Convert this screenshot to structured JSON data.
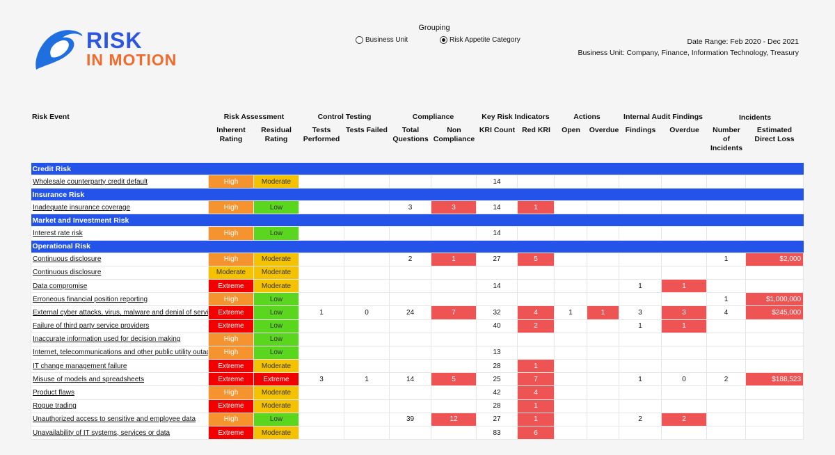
{
  "logo": {
    "line1": "RISK",
    "line2": "IN MOTION"
  },
  "grouping": {
    "title": "Grouping",
    "options": [
      {
        "label": "Business Unit",
        "selected": false
      },
      {
        "label": "Risk Appetite Category",
        "selected": true
      }
    ]
  },
  "meta": {
    "date_range": "Date Range: Feb 2020 - Dec 2021",
    "business_unit": "Business Unit: Company, Finance, Information Technology, Treasury"
  },
  "headers": {
    "risk_event": "Risk Event",
    "groups": [
      "Risk Assessment",
      "Control Testing",
      "Compliance",
      "Key Risk Indicators",
      "Actions",
      "Internal Audit Findings",
      "Incidents"
    ],
    "columns": [
      "Inherent Rating",
      "Residual Rating",
      "Tests Performed",
      "Tests Failed",
      "Total Questions",
      "Non Compliance",
      "KRI Count",
      "Red KRI",
      "Open",
      "Overdue",
      "Findings",
      "Overdue",
      "Number of Incidents",
      "Estimated Direct Loss"
    ]
  },
  "categories": [
    {
      "name": "Credit Risk",
      "rows": [
        {
          "event": "Wholesale counterparty credit default",
          "inherent": "High",
          "residual": "Moderate",
          "kri_count": "14"
        }
      ]
    },
    {
      "name": "Insurance Risk",
      "rows": [
        {
          "event": "Inadequate insurance coverage",
          "inherent": "High",
          "residual": "Low",
          "total_questions": "3",
          "non_compliance": "3",
          "kri_count": "14",
          "red_kri": "1"
        }
      ]
    },
    {
      "name": "Market and Investment Risk",
      "rows": [
        {
          "event": "Interest rate risk",
          "inherent": "High",
          "residual": "Low",
          "kri_count": "14"
        }
      ]
    },
    {
      "name": "Operational Risk",
      "rows": [
        {
          "event": "Continuous disclosure",
          "inherent": "High",
          "residual": "Moderate",
          "total_questions": "2",
          "non_compliance": "1",
          "kri_count": "27",
          "red_kri": "5",
          "incidents": "1",
          "loss": "$2,000"
        },
        {
          "event": "Continuous disclosure",
          "inherent": "Moderate",
          "residual": "Moderate"
        },
        {
          "event": "Data compromise",
          "inherent": "Extreme",
          "residual": "Moderate",
          "kri_count": "14",
          "findings": "1",
          "audit_overdue": "1"
        },
        {
          "event": "Erroneous financial position reporting",
          "inherent": "High",
          "residual": "Low",
          "incidents": "1",
          "loss": "$1,000,000"
        },
        {
          "event": "External cyber attacks, virus, malware and denial of service",
          "inherent": "Extreme",
          "residual": "Low",
          "tests_performed": "1",
          "tests_failed": "0",
          "total_questions": "24",
          "non_compliance": "7",
          "kri_count": "32",
          "red_kri": "4",
          "actions_open": "1",
          "actions_overdue": "1",
          "findings": "3",
          "audit_overdue": "3",
          "incidents": "4",
          "loss": "$245,000"
        },
        {
          "event": "Failure of third party service providers",
          "inherent": "Extreme",
          "residual": "Low",
          "kri_count": "40",
          "red_kri": "2",
          "findings": "1",
          "audit_overdue": "1"
        },
        {
          "event": "Inaccurate information used for decision making",
          "inherent": "High",
          "residual": "Low"
        },
        {
          "event": "Internet, telecommunications and other public utility outage",
          "inherent": "High",
          "residual": "Low",
          "kri_count": "13"
        },
        {
          "event": "IT change management failure",
          "inherent": "Extreme",
          "residual": "Moderate",
          "kri_count": "28",
          "red_kri": "1"
        },
        {
          "event": "Misuse of models and spreadsheets",
          "inherent": "Extreme",
          "residual": "Extreme",
          "tests_performed": "3",
          "tests_failed": "1",
          "total_questions": "14",
          "non_compliance": "5",
          "kri_count": "25",
          "red_kri": "7",
          "findings": "1",
          "audit_overdue_plain": "0",
          "incidents": "2",
          "loss": "$188,523"
        },
        {
          "event": "Product flaws",
          "inherent": "High",
          "residual": "Moderate",
          "kri_count": "42",
          "red_kri": "4"
        },
        {
          "event": "Rogue trading",
          "inherent": "Extreme",
          "residual": "Moderate",
          "kri_count": "28",
          "red_kri": "1"
        },
        {
          "event": "Unauthorized access to sensitive and employee data",
          "inherent": "High",
          "residual": "Low",
          "total_questions": "39",
          "non_compliance": "12",
          "kri_count": "27",
          "red_kri": "1",
          "findings": "2",
          "audit_overdue": "2"
        },
        {
          "event": "Unavailability of IT systems, services or data",
          "inherent": "Extreme",
          "residual": "Moderate",
          "kri_count": "83",
          "red_kri": "6"
        }
      ]
    }
  ]
}
